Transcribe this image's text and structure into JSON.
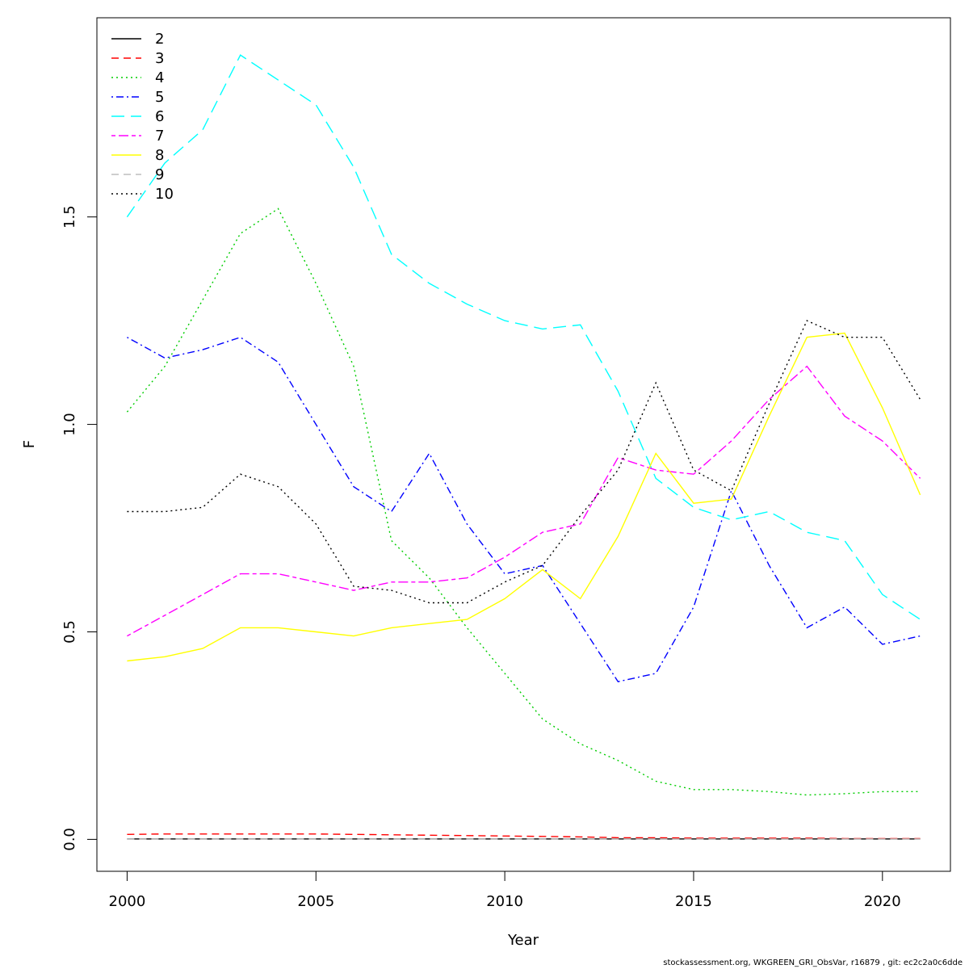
{
  "chart_data": {
    "type": "line",
    "xlabel": "Year",
    "ylabel": "F",
    "xlim": [
      1999.2,
      2021.8
    ],
    "ylim": [
      -0.077,
      1.98
    ],
    "xticks": [
      2000,
      2005,
      2010,
      2015,
      2020
    ],
    "yticks": [
      0.0,
      0.5,
      1.0,
      1.5
    ],
    "ytick_labels": [
      "0.0",
      "0.5",
      "1.0",
      "1.5"
    ],
    "legend_position": "top-left",
    "x": [
      2000,
      2001,
      2002,
      2003,
      2004,
      2005,
      2006,
      2007,
      2008,
      2009,
      2010,
      2011,
      2012,
      2013,
      2014,
      2015,
      2016,
      2017,
      2018,
      2019,
      2020,
      2021
    ],
    "series": [
      {
        "name": "2",
        "color": "#000000",
        "dash": "solid",
        "values": [
          0.001,
          0.001,
          0.001,
          0.001,
          0.001,
          0.001,
          0.001,
          0.001,
          0.001,
          0.001,
          0.001,
          0.001,
          0.001,
          0.001,
          0.001,
          0.001,
          0.001,
          0.001,
          0.001,
          0.001,
          0.001,
          0.001
        ]
      },
      {
        "name": "3",
        "color": "#ff0000",
        "dash": "dashed",
        "values": [
          0.012,
          0.013,
          0.013,
          0.013,
          0.013,
          0.013,
          0.012,
          0.011,
          0.01,
          0.009,
          0.008,
          0.007,
          0.006,
          0.004,
          0.004,
          0.003,
          0.003,
          0.003,
          0.003,
          0.002,
          0.002,
          0.002
        ]
      },
      {
        "name": "4",
        "color": "#00cd00",
        "dash": "dotted",
        "values": [
          1.03,
          1.14,
          1.3,
          1.46,
          1.52,
          1.34,
          1.14,
          0.72,
          0.63,
          0.51,
          0.4,
          0.29,
          0.23,
          0.19,
          0.14,
          0.12,
          0.12,
          0.115,
          0.107,
          0.11,
          0.115,
          0.115
        ]
      },
      {
        "name": "5",
        "color": "#0000ff",
        "dash": "dotdash",
        "values": [
          1.21,
          1.16,
          1.18,
          1.21,
          1.15,
          1.0,
          0.85,
          0.79,
          0.93,
          0.76,
          0.64,
          0.66,
          0.52,
          0.38,
          0.4,
          0.56,
          0.84,
          0.66,
          0.51,
          0.56,
          0.47,
          0.49
        ]
      },
      {
        "name": "6",
        "color": "#00ffff",
        "dash": "longdash",
        "values": [
          1.5,
          1.63,
          1.71,
          1.89,
          1.83,
          1.77,
          1.62,
          1.41,
          1.34,
          1.29,
          1.25,
          1.23,
          1.24,
          1.08,
          0.87,
          0.8,
          0.77,
          0.79,
          0.74,
          0.72,
          0.59,
          0.53
        ]
      },
      {
        "name": "7",
        "color": "#ff00ff",
        "dash": "twodash",
        "values": [
          0.49,
          0.54,
          0.59,
          0.64,
          0.64,
          0.62,
          0.6,
          0.62,
          0.62,
          0.63,
          0.68,
          0.74,
          0.76,
          0.92,
          0.89,
          0.88,
          0.96,
          1.06,
          1.14,
          1.02,
          0.96,
          0.87
        ]
      },
      {
        "name": "8",
        "color": "#ffff00",
        "dash": "solid",
        "values": [
          0.43,
          0.44,
          0.46,
          0.51,
          0.51,
          0.5,
          0.49,
          0.51,
          0.52,
          0.53,
          0.58,
          0.65,
          0.58,
          0.73,
          0.93,
          0.81,
          0.82,
          1.02,
          1.21,
          1.22,
          1.04,
          0.83
        ]
      },
      {
        "name": "9",
        "color": "#bebebe",
        "dash": "dashed",
        "values": [
          0.001,
          0.001,
          0.001,
          0.001,
          0.001,
          0.001,
          0.001,
          0.001,
          0.001,
          0.001,
          0.001,
          0.001,
          0.001,
          0.001,
          0.001,
          0.001,
          0.001,
          0.001,
          0.001,
          0.001,
          0.001,
          0.001
        ]
      },
      {
        "name": "10",
        "color": "#000000",
        "dash": "dotted",
        "values": [
          0.79,
          0.79,
          0.8,
          0.88,
          0.85,
          0.76,
          0.61,
          0.6,
          0.57,
          0.57,
          0.62,
          0.66,
          0.78,
          0.89,
          1.1,
          0.89,
          0.84,
          1.05,
          1.25,
          1.21,
          1.21,
          1.06
        ]
      }
    ]
  },
  "footer": "stockassessment.org, WKGREEN_GRI_ObsVar, r16879 , git: ec2c2a0c6dde"
}
